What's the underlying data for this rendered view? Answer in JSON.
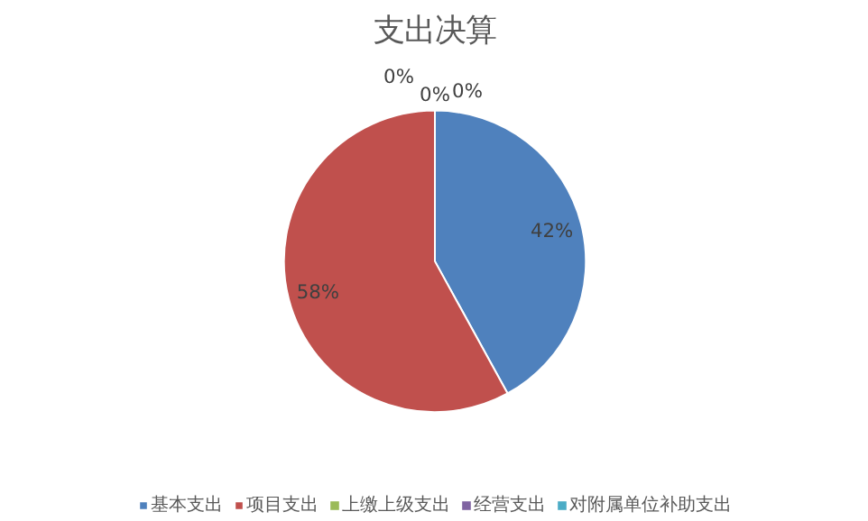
{
  "chart_data": {
    "type": "pie",
    "title": "支出决算",
    "categories": [
      "基本支出",
      "项目支出",
      "上缴上级支出",
      "经营支出",
      "对附属单位补助支出"
    ],
    "values": [
      42,
      58,
      0,
      0,
      0
    ],
    "colors": [
      "#4f81bd",
      "#c0504d",
      "#9bbb59",
      "#8064a2",
      "#4bacc6"
    ],
    "value_labels": [
      "42%",
      "58%",
      "0%",
      "0%",
      "0%"
    ],
    "legend": "bottom"
  }
}
